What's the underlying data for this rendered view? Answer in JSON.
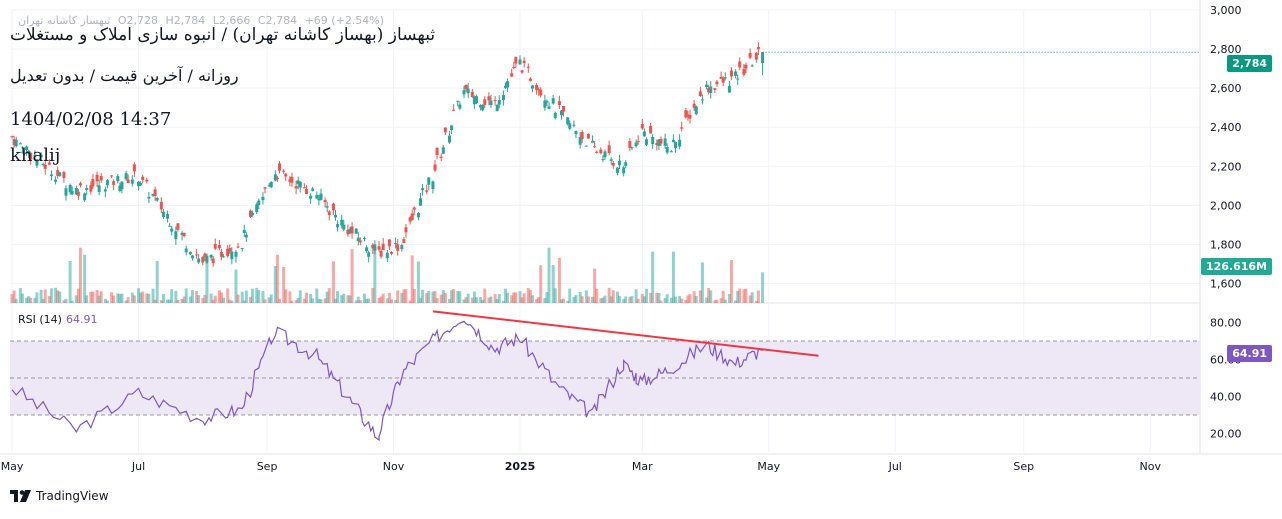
{
  "header": {
    "symbol_small": "ثبهساز کاشانه تهران",
    "ohlc": [
      "O2,728",
      "H2,784",
      "L2,666",
      "C2,784",
      "+69 (+2.54%)"
    ]
  },
  "overlay": {
    "title": "ثبهساز (بهساز کاشانه تهران) / انبوه سازی املاک و مستغلات",
    "subtitle": "روزانه / آخرین قیمت / بدون تعدیل",
    "datetime": "1404/02/08 14:37",
    "author": "khalij"
  },
  "price_axis": {
    "ticks": [
      "3,000",
      "2,800",
      "2,600",
      "2,400",
      "2,200",
      "2,000",
      "1,800",
      "1,600"
    ],
    "last_price_label": "2,784",
    "volume_label": "126.616M"
  },
  "rsi": {
    "label": "RSI (14)",
    "value_label": "64.91",
    "ticks": [
      "80.00",
      "60.00",
      "40.00",
      "20.00"
    ],
    "upper_band": 70,
    "middle_band": 50,
    "lower_band": 30
  },
  "time_axis": {
    "labels": [
      "May",
      "Jul",
      "Sep",
      "Nov",
      "2025",
      "Mar",
      "May",
      "Jul",
      "Sep",
      "Nov"
    ]
  },
  "brand": {
    "name": "TradingView"
  },
  "colors": {
    "up": "#26a69a",
    "down": "#ef5350",
    "rsi_line": "#7e57c2",
    "rsi_band_fill": "#ede7f6",
    "trendline": "#f23645",
    "price_tag": "#089981",
    "rsi_tag": "#7e57c2",
    "grid": "#f0f3fa",
    "axis_text": "#131722"
  },
  "chart_data": [
    {
      "type": "candlestick",
      "title": "ثبهساز (بهساز کاشانه تهران) / انبوه سازی املاک و مستغلات",
      "x": [
        "2024-05-01",
        "2024-06-01",
        "2024-07-01",
        "2024-08-01",
        "2024-08-20",
        "2024-09-05",
        "2024-09-25",
        "2024-10-10",
        "2024-10-25",
        "2024-11-05",
        "2024-11-20",
        "2024-12-05",
        "2024-12-20",
        "2025-01-01",
        "2025-01-20",
        "2025-02-05",
        "2025-02-20",
        "2025-03-01",
        "2025-03-15",
        "2025-04-01",
        "2025-04-15",
        "2025-04-28"
      ],
      "close": [
        2350,
        2080,
        2150,
        1710,
        1810,
        2170,
        2060,
        1880,
        1760,
        1800,
        2150,
        2580,
        2520,
        2730,
        2480,
        2300,
        2200,
        2380,
        2290,
        2600,
        2650,
        2784
      ],
      "ylim": [
        1500,
        3000
      ],
      "last_price": 2784,
      "last_volume": "126.616M"
    },
    {
      "type": "line",
      "title": "RSI (14)",
      "x": [
        "2024-05-01",
        "2024-06-01",
        "2024-07-01",
        "2024-08-01",
        "2024-08-20",
        "2024-09-05",
        "2024-09-25",
        "2024-10-10",
        "2024-10-25",
        "2024-11-05",
        "2024-11-20",
        "2024-12-05",
        "2024-12-20",
        "2025-01-01",
        "2025-01-20",
        "2025-02-05",
        "2025-02-20",
        "2025-03-01",
        "2025-03-15",
        "2025-04-01",
        "2025-04-15",
        "2025-04-28"
      ],
      "values": [
        45,
        22,
        42,
        28,
        33,
        75,
        62,
        40,
        18,
        52,
        70,
        84,
        66,
        72,
        45,
        30,
        58,
        48,
        55,
        68,
        58,
        64.91
      ],
      "ylim": [
        10,
        90
      ],
      "bands": [
        30,
        50,
        70
      ],
      "trendline": {
        "from": [
          "2024-11-20",
          86
        ],
        "to": [
          "2025-05-25",
          62
        ]
      }
    }
  ]
}
